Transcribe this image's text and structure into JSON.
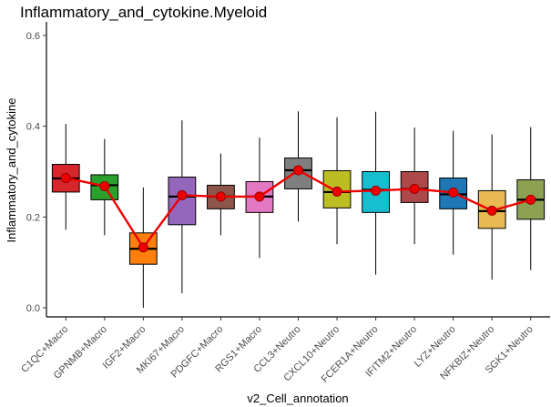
{
  "chart_data": {
    "type": "box",
    "title": "Inflammatory_and_cytokine.Myeloid",
    "xlabel": "v2_Cell_annotation",
    "ylabel": "Inflammatory_and_cytokine",
    "ylim": [
      -0.02,
      0.63
    ],
    "yticks": [
      0.0,
      0.2,
      0.4,
      0.6
    ],
    "ytick_labels": [
      "0.0",
      "0.2",
      "0.4",
      "0.6"
    ],
    "grid": false,
    "legend": "none",
    "categories": [
      "C1QC+Macro",
      "GPNMB+Macro",
      "IGF2+Macro",
      "MKI67+Macro",
      "PDGFC+Macro",
      "RGS1+Macro",
      "CCL3+Neutro",
      "CXCL10+Neutro",
      "FCER1A+Neutro",
      "IFITM2+Neutro",
      "LYZ+Neutro",
      "NFKBIZ+Neutro",
      "SGK1+Neutro"
    ],
    "boxes": [
      {
        "category": "C1QC+Macro",
        "whisker_low": 0.172,
        "q1": 0.255,
        "median": 0.285,
        "q3": 0.316,
        "whisker_high": 0.405,
        "color": "#D7262B"
      },
      {
        "category": "GPNMB+Macro",
        "whisker_low": 0.16,
        "q1": 0.238,
        "median": 0.27,
        "q3": 0.293,
        "whisker_high": 0.372,
        "color": "#2CA02C"
      },
      {
        "category": "IGF2+Macro",
        "whisker_low": 0.0,
        "q1": 0.096,
        "median": 0.13,
        "q3": 0.165,
        "whisker_high": 0.265,
        "color": "#FF7F0E"
      },
      {
        "category": "MKI67+Macro",
        "whisker_low": 0.032,
        "q1": 0.183,
        "median": 0.245,
        "q3": 0.288,
        "whisker_high": 0.413,
        "color": "#9467BD"
      },
      {
        "category": "PDGFC+Macro",
        "whisker_low": 0.16,
        "q1": 0.218,
        "median": 0.245,
        "q3": 0.27,
        "whisker_high": 0.34,
        "color": "#8C564B"
      },
      {
        "category": "RGS1+Macro",
        "whisker_low": 0.11,
        "q1": 0.21,
        "median": 0.245,
        "q3": 0.278,
        "whisker_high": 0.375,
        "color": "#E377C2"
      },
      {
        "category": "CCL3+Neutro",
        "whisker_low": 0.19,
        "q1": 0.262,
        "median": 0.303,
        "q3": 0.33,
        "whisker_high": 0.433,
        "color": "#7F7F7F"
      },
      {
        "category": "CXCL10+Neutro",
        "whisker_low": 0.14,
        "q1": 0.22,
        "median": 0.255,
        "q3": 0.302,
        "whisker_high": 0.42,
        "color": "#BCBD22"
      },
      {
        "category": "FCER1A+Neutro",
        "whisker_low": 0.073,
        "q1": 0.21,
        "median": 0.26,
        "q3": 0.3,
        "whisker_high": 0.432,
        "color": "#17BECF"
      },
      {
        "category": "IFITM2+Neutro",
        "whisker_low": 0.14,
        "q1": 0.232,
        "median": 0.262,
        "q3": 0.3,
        "whisker_high": 0.397,
        "color": "#AD494A"
      },
      {
        "category": "LYZ+Neutro",
        "whisker_low": 0.117,
        "q1": 0.218,
        "median": 0.25,
        "q3": 0.286,
        "whisker_high": 0.39,
        "color": "#1F77B4"
      },
      {
        "category": "NFKBIZ+Neutro",
        "whisker_low": 0.062,
        "q1": 0.175,
        "median": 0.213,
        "q3": 0.258,
        "whisker_high": 0.382,
        "color": "#E7BA52"
      },
      {
        "category": "SGK1+Neutro",
        "whisker_low": 0.083,
        "q1": 0.195,
        "median": 0.238,
        "q3": 0.282,
        "whisker_high": 0.398,
        "color": "#8CA252"
      }
    ],
    "series": [
      {
        "type": "line",
        "color": "#EE0000",
        "values": [
          0.286,
          0.268,
          0.133,
          0.248,
          0.245,
          0.245,
          0.303,
          0.256,
          0.258,
          0.262,
          0.254,
          0.214,
          0.238
        ]
      }
    ]
  }
}
